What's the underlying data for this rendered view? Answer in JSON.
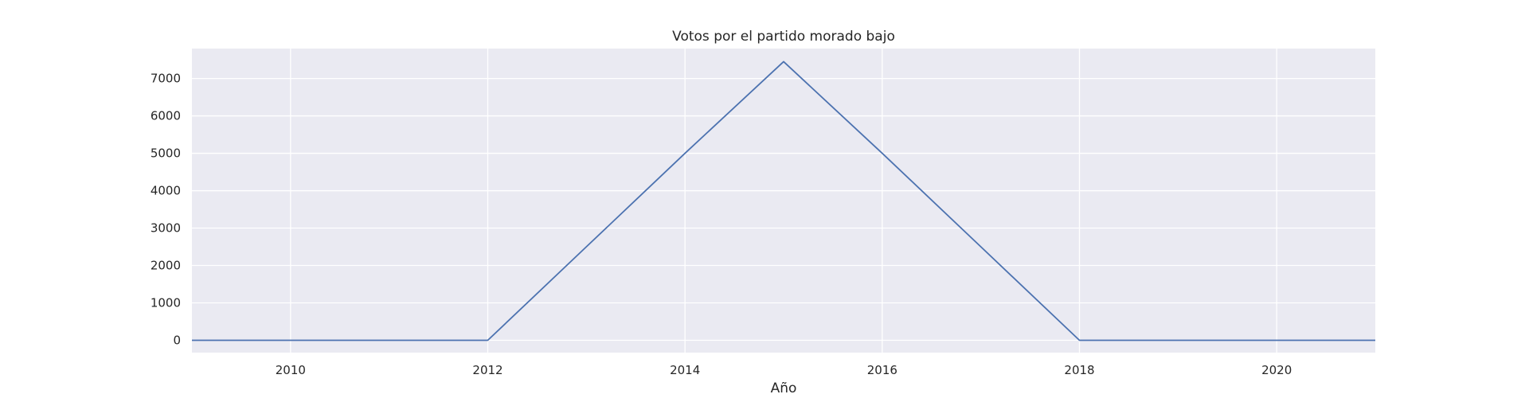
{
  "chart_data": {
    "type": "line",
    "title": "Votos por el partido morado bajo",
    "xlabel": "Año",
    "ylabel": "",
    "x": [
      2009,
      2010,
      2011,
      2012,
      2013,
      2014,
      2015,
      2016,
      2017,
      2018,
      2019,
      2020,
      2021
    ],
    "series": [
      {
        "values": [
          0,
          0,
          0,
          0,
          2500,
          5000,
          7450,
          5000,
          2500,
          0,
          0,
          0,
          0
        ]
      }
    ],
    "xlim": [
      2009,
      2021
    ],
    "ylim": [
      -330,
      7800
    ],
    "xticks": [
      2010,
      2012,
      2014,
      2016,
      2018,
      2020
    ],
    "xtick_labels": [
      "2010",
      "2012",
      "2014",
      "2016",
      "2018",
      "2020"
    ],
    "yticks": [
      0,
      1000,
      2000,
      3000,
      4000,
      5000,
      6000,
      7000
    ],
    "ytick_labels": [
      "0",
      "1000",
      "2000",
      "3000",
      "4000",
      "5000",
      "6000",
      "7000"
    ],
    "grid": true,
    "colors": {
      "background": "#eaeaf2",
      "grid": "#ffffff",
      "line": "#4c72b0"
    }
  }
}
